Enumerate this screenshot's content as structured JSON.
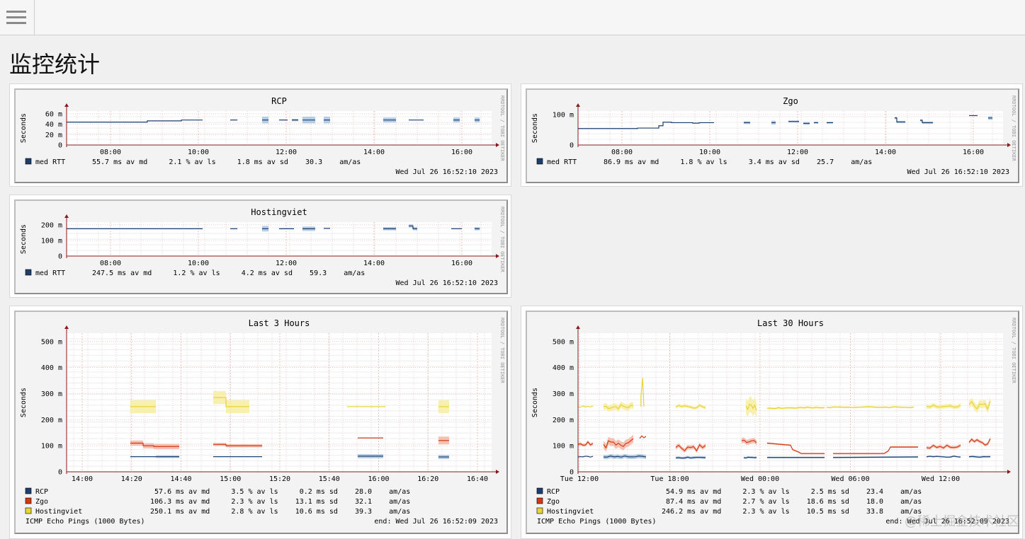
{
  "header": {
    "menu_icon": "hamburger-menu-icon"
  },
  "page": {
    "title": "监控统计"
  },
  "watermark": "@稀土掘金技术社区",
  "colors": {
    "rcp": "#1d3f6e",
    "rcp_band": "#a9c6e0",
    "zgo": "#d33a14",
    "zgo_band": "#f3b6a6",
    "hostingviet": "#e8d33a",
    "hostingviet_band": "#f7eda0",
    "axis": "#8b1a1a",
    "grid": "#e4b4b4"
  },
  "graphs": {
    "rcp": {
      "title": "RCP",
      "ylabel": "Seconds",
      "side_label": "RRDTOOL / TOBI OETIKER",
      "yticks": [
        "60 m",
        "40 m",
        "20 m",
        "0"
      ],
      "xticks": [
        "08:00",
        "10:00",
        "12:00",
        "14:00",
        "16:00"
      ],
      "legend": [
        {
          "name": "med RTT",
          "stats": "55.7 ms av md     2.1 % av ls     1.8 ms av sd    30.3    am/as"
        }
      ],
      "footer_left": "",
      "footer_right": "Wed Jul 26 16:52:10 2023"
    },
    "zgo": {
      "title": "Zgo",
      "ylabel": "Seconds",
      "side_label": "RRDTOOL / TOBI OETIKER",
      "yticks": [
        "100 m",
        "0"
      ],
      "xticks": [
        "08:00",
        "10:00",
        "12:00",
        "14:00",
        "16:00"
      ],
      "legend": [
        {
          "name": "med RTT",
          "stats": "86.9 ms av md     1.8 % av ls     3.4 ms av sd    25.7    am/as"
        }
      ],
      "footer_left": "",
      "footer_right": "Wed Jul 26 16:52:10 2023"
    },
    "hostingviet": {
      "title": "Hostingviet",
      "ylabel": "Seconds",
      "side_label": "RRDTOOL / TOBI OETIKER",
      "yticks": [
        "200 m",
        "100 m",
        "0"
      ],
      "xticks": [
        "08:00",
        "10:00",
        "12:00",
        "14:00",
        "16:00"
      ],
      "legend": [
        {
          "name": "med RTT",
          "stats": "247.5 ms av md     1.2 % av ls     4.2 ms av sd    59.3    am/as"
        }
      ],
      "footer_left": "",
      "footer_right": "Wed Jul 26 16:52:10 2023"
    },
    "last3": {
      "title": "Last 3 Hours",
      "ylabel": "Seconds",
      "side_label": "RRDTOOL / TOBI OETIKER",
      "yticks": [
        "500 m",
        "400 m",
        "300 m",
        "200 m",
        "100 m",
        "0"
      ],
      "xticks": [
        "14:00",
        "14:20",
        "14:40",
        "15:00",
        "15:20",
        "15:40",
        "16:00",
        "16:20",
        "16:40"
      ],
      "legend": [
        {
          "name": "RCP",
          "stats": " 57.6 ms av md     3.5 % av ls     0.2 ms sd    28.0    am/as"
        },
        {
          "name": "Zgo",
          "stats": "106.3 ms av md     2.3 % av ls    13.1 ms sd    32.1    am/as"
        },
        {
          "name": "Hostingviet",
          "stats": "250.1 ms av md     2.8 % av ls    10.6 ms sd    39.3    am/as"
        }
      ],
      "footer_left": "ICMP Echo Pings (1000 Bytes)",
      "footer_right": "end: Wed Jul 26 16:52:09 2023"
    },
    "last30": {
      "title": "Last 30 Hours",
      "ylabel": "Seconds",
      "side_label": "RRDTOOL / TOBI OETIKER",
      "yticks": [
        "500 m",
        "400 m",
        "300 m",
        "200 m",
        "100 m",
        "0"
      ],
      "xticks": [
        "Tue 12:00",
        "Tue 18:00",
        "Wed 00:00",
        "Wed 06:00",
        "Wed 12:00"
      ],
      "legend": [
        {
          "name": "RCP",
          "stats": " 54.9 ms av md     2.3 % av ls     2.5 ms sd    23.4    am/as"
        },
        {
          "name": "Zgo",
          "stats": " 87.4 ms av md     2.7 % av ls    18.6 ms sd    18.0    am/as"
        },
        {
          "name": "Hostingviet",
          "stats": "246.2 ms av md     2.3 % av ls    10.5 ms sd    33.8    am/as"
        }
      ],
      "footer_left": "ICMP Echo Pings (1000 Bytes)",
      "footer_right": "end: Wed Jul 26 16:52:09 2023"
    }
  }
}
